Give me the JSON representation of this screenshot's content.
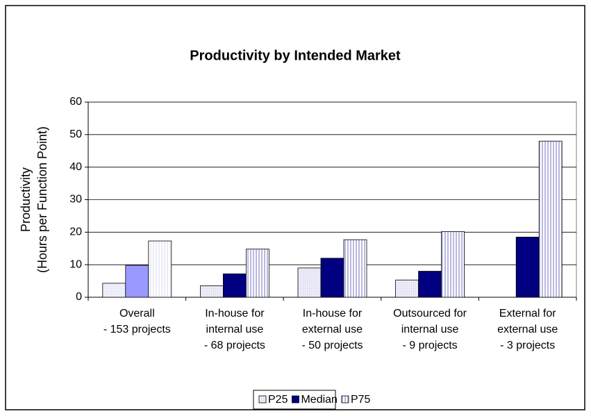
{
  "chart_data": {
    "type": "bar",
    "title": "Productivity by Intended Market",
    "y_label": [
      "Productivity",
      "(Hours per Function Point)"
    ],
    "categories": [
      "Overall\n- 153 projects",
      "In-house for\ninternal use\n- 68 projects",
      "In-house for\nexternal use\n- 50 projects",
      "Outsourced for\ninternal use\n- 9 projects",
      "External for\nexternal use\n- 3 projects"
    ],
    "series": [
      {
        "name": "P25",
        "color": "#e2e2f4",
        "colors": [
          "#e8e8f8",
          "#e2e2f4",
          "#e2e2f4",
          "#e2e2f4",
          "#e2e2f4"
        ],
        "values": [
          4.3,
          3.5,
          9,
          5.3,
          null
        ]
      },
      {
        "name": "Median",
        "color": "#000080",
        "colors": [
          "#9999ff",
          "#000080",
          "#000080",
          "#000080",
          "#000080"
        ],
        "values": [
          9.8,
          7.2,
          12,
          8,
          18.5
        ]
      },
      {
        "name": "P75",
        "color": "#b8b8e0",
        "colors": [
          "#ececf8",
          "#b8b8e0",
          "#b8b8e0",
          "#b8b8e0",
          "#b8b8e0"
        ],
        "values": [
          17.3,
          14.8,
          17.7,
          20.2,
          48
        ]
      }
    ],
    "ylim": [
      0,
      60
    ],
    "yticks": [
      0,
      10,
      20,
      30,
      40,
      50,
      60
    ],
    "grid": true,
    "legend": "bottom"
  }
}
